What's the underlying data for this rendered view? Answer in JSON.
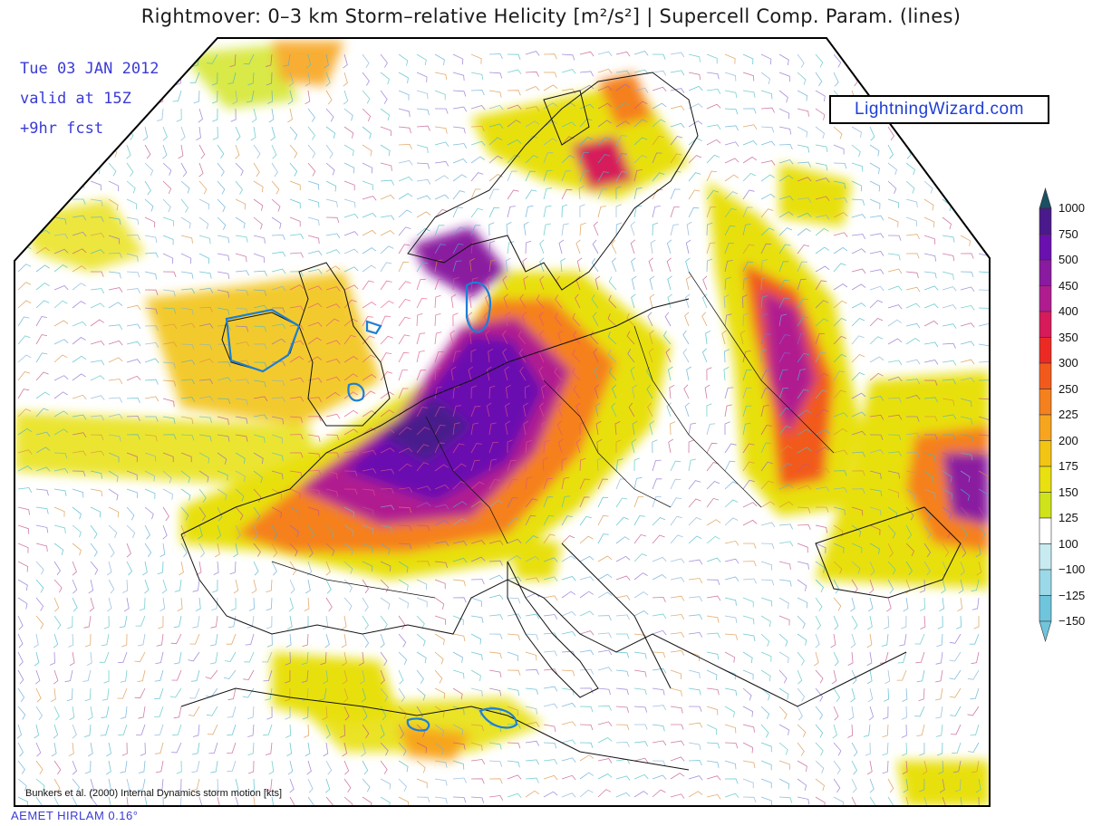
{
  "header": {
    "title": "Rightmover: 0–3 km Storm–relative Helicity [m²/s²] | Supercell Comp. Param. (lines)"
  },
  "info": {
    "date": "Tue 03 JAN 2012",
    "valid": "valid at 15Z",
    "forecast": "+9hr fcst"
  },
  "brand": {
    "label": "LightningWizard.com"
  },
  "legend": {
    "items": [
      {
        "label": "1000",
        "color": "#1b4f63"
      },
      {
        "label": "750",
        "color": "#4a1a8c"
      },
      {
        "label": "500",
        "color": "#6a10b0"
      },
      {
        "label": "450",
        "color": "#8a1aa0"
      },
      {
        "label": "400",
        "color": "#b01c90"
      },
      {
        "label": "350",
        "color": "#d61a5a"
      },
      {
        "label": "300",
        "color": "#ec2a24"
      },
      {
        "label": "250",
        "color": "#f25a1c"
      },
      {
        "label": "225",
        "color": "#f5801e"
      },
      {
        "label": "200",
        "color": "#f7a51e"
      },
      {
        "label": "175",
        "color": "#f2c414"
      },
      {
        "label": "150",
        "color": "#e8e010"
      },
      {
        "label": "125",
        "color": "#cfe31a"
      },
      {
        "label": "100",
        "color": "#ffffff"
      },
      {
        "label": "−100",
        "color": "#c8ebf2"
      },
      {
        "label": "−125",
        "color": "#9cd9e8"
      },
      {
        "label": "−150",
        "color": "#6fc5dc"
      }
    ]
  },
  "footer": {
    "note": "Bunkers et al. (2000) Internal Dynamics storm motion [kts]",
    "model": "AEMET HIRLAM 0.16°"
  },
  "icons": {
    "barbs": "wind-barb-icon"
  }
}
